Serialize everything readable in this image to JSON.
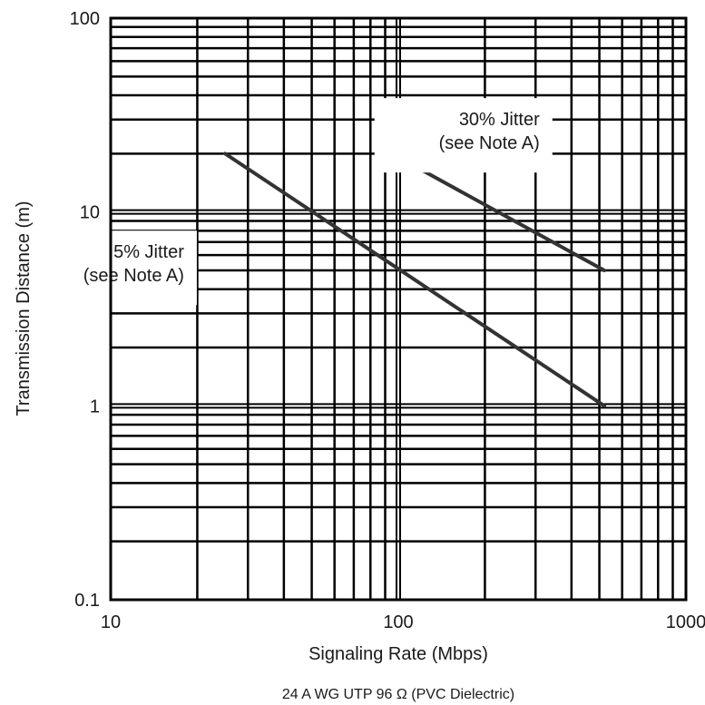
{
  "chart_data": {
    "type": "line",
    "xlabel": "Signaling Rate (Mbps)",
    "ylabel": "Transmission Distance (m)",
    "caption": "24 A WG UTP 96 Ω (PVC Dielectric)",
    "x_scale": "log",
    "y_scale": "log",
    "xlim": [
      10,
      1000
    ],
    "ylim": [
      0.1,
      100
    ],
    "grid": true,
    "x_ticks": [
      10,
      100,
      1000
    ],
    "x_tick_labels": [
      "10",
      "100",
      "1000"
    ],
    "y_ticks": [
      0.1,
      1,
      10,
      100
    ],
    "y_tick_labels": [
      "0.1",
      "1",
      "10",
      "100"
    ],
    "series": [
      {
        "x": [
          25,
          520
        ],
        "y": [
          20,
          1
        ],
        "annotation": [
          "5% Jitter",
          "(see Note A)"
        ]
      },
      {
        "x": [
          95,
          520
        ],
        "y": [
          20,
          5
        ],
        "annotation": [
          "30% Jitter",
          "(see Note A)"
        ]
      }
    ],
    "colors": {
      "series": "#333333",
      "grid": "#000000"
    }
  }
}
